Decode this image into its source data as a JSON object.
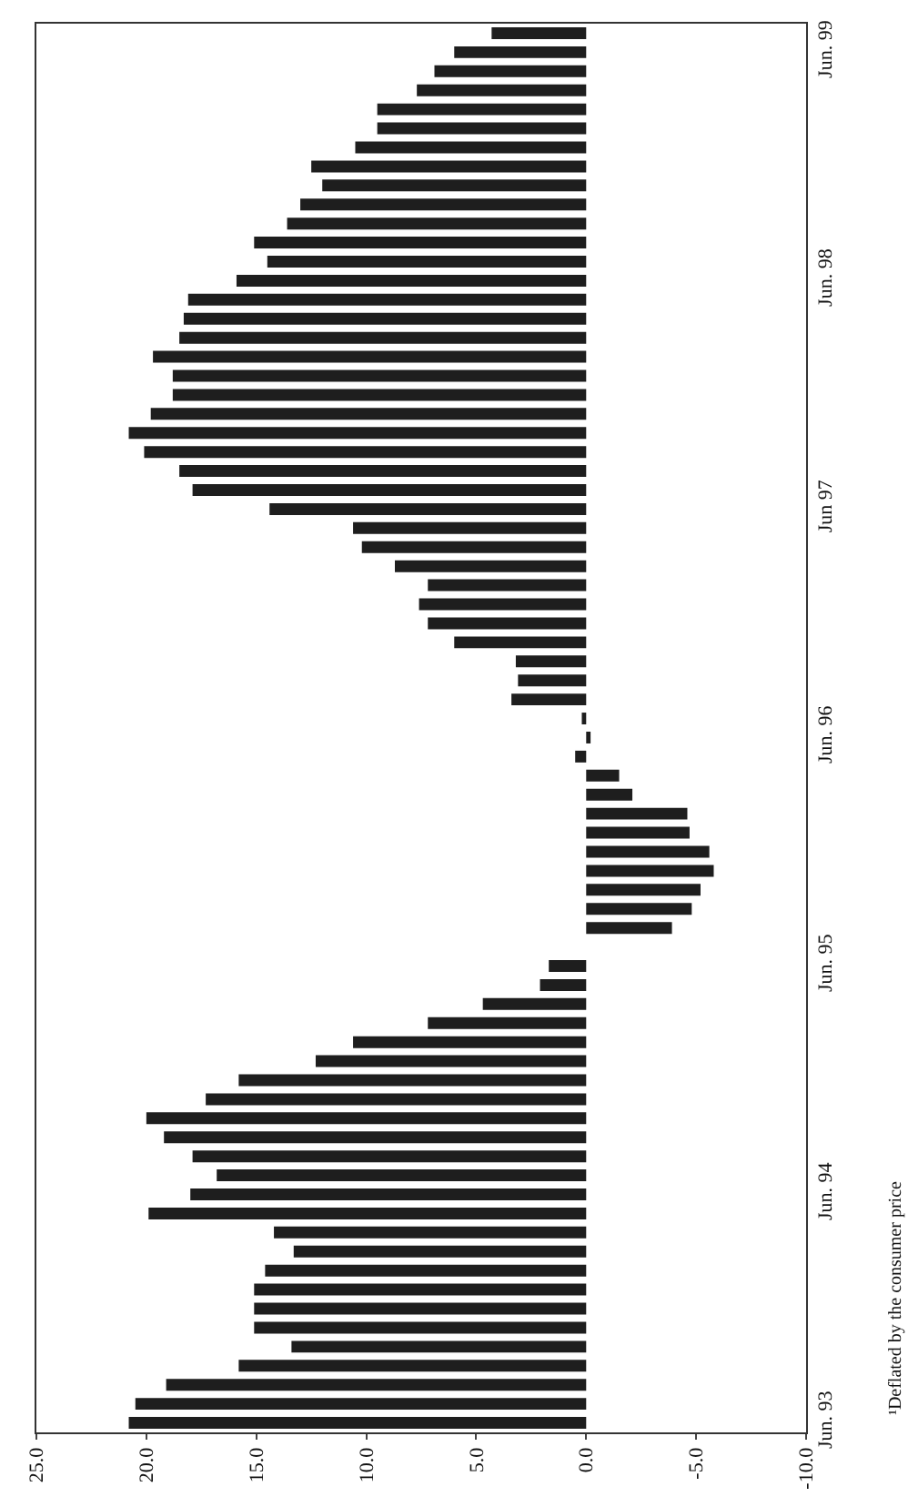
{
  "chart_data": {
    "type": "bar",
    "orientation": "horizontal",
    "color": "#1e1e1e",
    "categories": [
      null,
      "Jun. 99",
      null,
      null,
      null,
      null,
      null,
      null,
      null,
      null,
      null,
      null,
      null,
      "Jun. 98",
      null,
      null,
      null,
      null,
      null,
      null,
      null,
      null,
      null,
      null,
      null,
      "Jun 97",
      null,
      null,
      null,
      null,
      null,
      null,
      null,
      null,
      null,
      null,
      null,
      "Jun. 96",
      null,
      null,
      null,
      null,
      null,
      null,
      null,
      null,
      null,
      null,
      null,
      "Jun. 95",
      null,
      null,
      null,
      null,
      null,
      null,
      null,
      null,
      null,
      null,
      null,
      "Jun. 94",
      null,
      null,
      null,
      null,
      null,
      null,
      null,
      null,
      null,
      null,
      null,
      "Jun. 93"
    ],
    "values": [
      4.3,
      6.0,
      6.9,
      7.7,
      9.5,
      9.5,
      10.5,
      12.5,
      12.0,
      13.0,
      13.6,
      15.1,
      14.5,
      15.9,
      18.1,
      18.3,
      18.5,
      19.7,
      18.8,
      18.8,
      19.8,
      20.8,
      20.1,
      18.5,
      17.9,
      14.4,
      10.6,
      10.2,
      8.7,
      7.2,
      7.6,
      7.2,
      6.0,
      3.2,
      3.1,
      3.4,
      0.2,
      -0.2,
      0.5,
      -1.5,
      -2.1,
      -4.6,
      -4.7,
      -5.6,
      -5.8,
      -5.2,
      -4.8,
      -3.9,
      0,
      1.7,
      2.1,
      4.7,
      7.2,
      10.6,
      12.3,
      15.8,
      17.3,
      20.0,
      19.2,
      17.9,
      16.8,
      18.0,
      19.9,
      14.2,
      13.3,
      14.6,
      15.1,
      15.1,
      15.1,
      13.4,
      15.8,
      19.1,
      20.5,
      20.8
    ],
    "xlim": [
      25,
      -10
    ],
    "xticks": [
      {
        "value": -10,
        "label": "-10.0"
      },
      {
        "value": -5,
        "label": "-5.0"
      },
      {
        "value": 0,
        "label": "0.0"
      },
      {
        "value": 5,
        "label": "5.0"
      },
      {
        "value": 10,
        "label": "10.0"
      },
      {
        "value": 15,
        "label": "15.0"
      },
      {
        "value": 20,
        "label": "20.0"
      },
      {
        "value": 25,
        "label": "25.0"
      }
    ],
    "grid": false,
    "annotations": [
      "¹Deflated by the consumer price"
    ]
  }
}
